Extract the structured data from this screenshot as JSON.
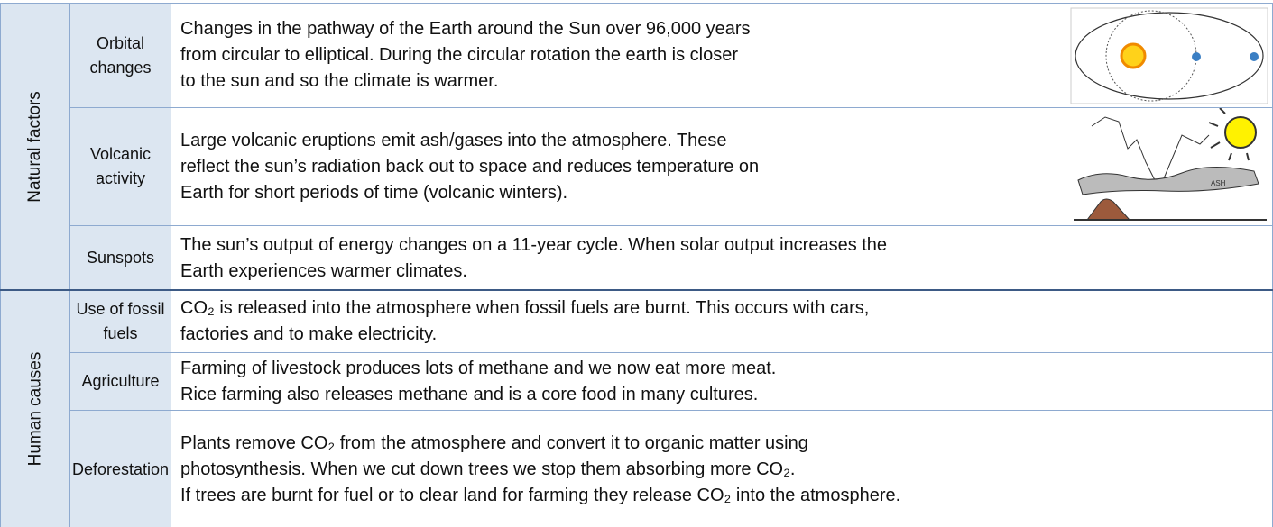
{
  "groups": [
    {
      "label": "Natural factors",
      "rows": [
        {
          "factor": "Orbital changes",
          "lines": [
            "Changes in the pathway of the Earth around the Sun over 96,000 years",
            "from circular to elliptical. During the circular rotation the earth is closer",
            "to the sun and so the climate is warmer."
          ]
        },
        {
          "factor": "Volcanic activity",
          "lines": [
            "Large volcanic eruptions emit ash/gases into the atmosphere. These",
            "reflect the sun’s radiation back out to space and reduces temperature on",
            "Earth for short periods of time (volcanic winters)."
          ]
        },
        {
          "factor": "Sunspots",
          "lines": [
            "The sun’s output of energy changes on a 11-year cycle.  When solar output increases the",
            "Earth experiences warmer climates."
          ]
        }
      ]
    },
    {
      "label": "Human causes",
      "rows": [
        {
          "factor": "Use of fossil fuels",
          "lines": [
            "CO₂ is released into the atmosphere when fossil fuels are burnt. This occurs with cars,",
            "factories and to make electricity."
          ]
        },
        {
          "factor": "Agriculture",
          "lines": [
            "Farming of livestock produces lots of methane and we now eat more meat.",
            "Rice farming also releases methane and is a core food in many cultures."
          ]
        },
        {
          "factor": "Deforestation",
          "lines": [
            "Plants remove CO₂ from the atmosphere and convert it to organic matter using",
            "photosynthesis. When we cut down trees we stop them absorbing more CO₂.",
            "If trees are burnt for fuel or to clear land for farming they release CO₂ into the atmosphere."
          ]
        }
      ]
    }
  ],
  "volcano_label": "ASH"
}
